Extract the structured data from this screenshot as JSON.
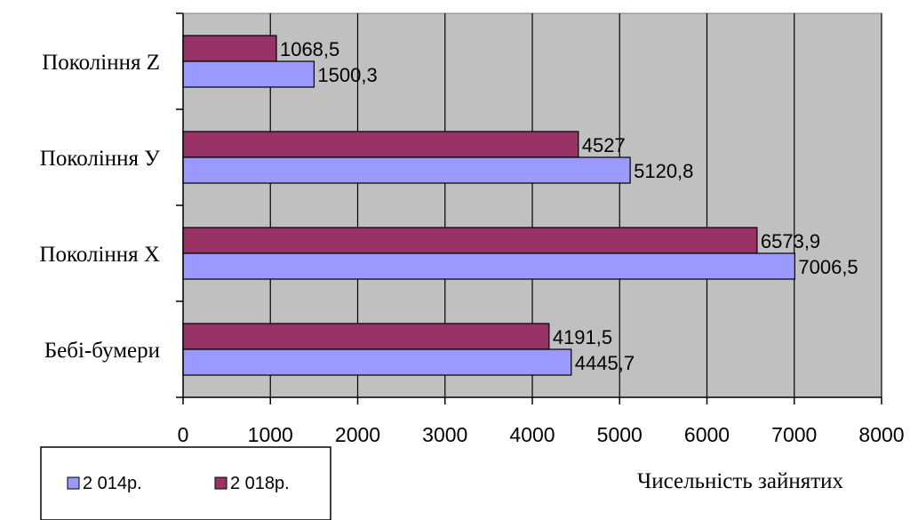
{
  "chart_data": {
    "type": "bar",
    "orientation": "horizontal",
    "categories": [
      "Бебі-бумери",
      "Покоління Х",
      "Покоління У",
      "Покоління Z"
    ],
    "series": [
      {
        "name": "2 014р.",
        "values": [
          4445.7,
          7006.5,
          5120.8,
          1500.3
        ],
        "color": "#9999ff"
      },
      {
        "name": "2 018р.",
        "values": [
          4191.5,
          6573.9,
          4527,
          1068.5
        ],
        "color": "#993366"
      }
    ],
    "data_labels": [
      [
        "4445,7",
        "7006,5",
        "5120,8",
        "1500,3"
      ],
      [
        "4191,5",
        "6573,9",
        "4527",
        "1068,5"
      ]
    ],
    "xlim": [
      0,
      8000
    ],
    "x_ticks": [
      "0",
      "1000",
      "2000",
      "3000",
      "4000",
      "5000",
      "6000",
      "7000",
      "8000"
    ],
    "xlabel": "Чисельність зайнятих",
    "ylabel": "",
    "title": "",
    "grid": "vertical",
    "plot_background": "#c0c0c0",
    "legend_position": "bottom-left"
  }
}
